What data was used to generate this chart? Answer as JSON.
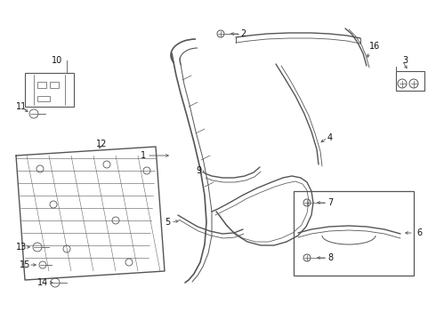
{
  "bg_color": "#ffffff",
  "line_color": "#555555",
  "label_color": "#111111",
  "figsize": [
    4.9,
    3.6
  ],
  "dpi": 100
}
